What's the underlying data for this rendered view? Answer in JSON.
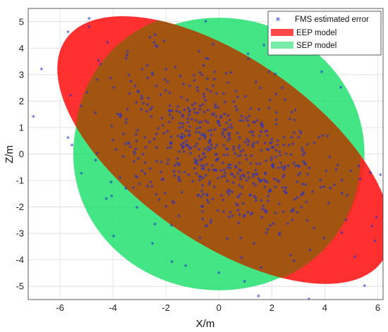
{
  "chart_data": {
    "type": "scatter",
    "xlabel": "X/m",
    "ylabel": "Z/m",
    "xlim": [
      -7.2,
      6.2
    ],
    "ylim": [
      -5.5,
      5.5
    ],
    "xticks": [
      -6,
      -4,
      -2,
      0,
      2,
      4,
      6
    ],
    "yticks": [
      -5,
      -4,
      -3,
      -2,
      -1,
      0,
      1,
      2,
      3,
      4,
      5
    ],
    "grid": true,
    "legend_position": "top-right",
    "legend": [
      {
        "label": "FMS estimated error",
        "marker": "asterisk",
        "color": "#1f2fd0"
      },
      {
        "label": "EEP model",
        "marker": "patch",
        "color": "#ff1a1a"
      },
      {
        "label": "SEP model",
        "marker": "patch",
        "color": "#22e070"
      }
    ],
    "series": [
      {
        "name": "SEP model",
        "shape": "ellipse",
        "color": "#22e070",
        "center": [
          0.0,
          0.0
        ],
        "semi_axis_x": 5.5,
        "semi_axis_z": 5.15,
        "rotation_deg": 0
      },
      {
        "name": "EEP model",
        "shape": "ellipse",
        "color": "#ff1a1a",
        "center": [
          0.2,
          0.15
        ],
        "semi_axis_major": 7.3,
        "semi_axis_minor": 3.3,
        "rotation_deg": -35
      },
      {
        "name": "FMS estimated error",
        "shape": "scatter",
        "color": "#1f2fd0",
        "points": [
          [
            -4.9,
            5.1
          ],
          [
            -5.7,
            4.6
          ],
          [
            -4.9,
            4.8
          ],
          [
            -6.7,
            3.2
          ],
          [
            -7.0,
            1.4
          ],
          [
            -5.7,
            0.6
          ],
          [
            -5.6,
            2.2
          ],
          [
            -4.6,
            2.8
          ],
          [
            -0.5,
            5.0
          ],
          [
            4.6,
            2.5
          ],
          [
            6.1,
            -0.8
          ],
          [
            5.9,
            -3.3
          ],
          [
            5.5,
            -5.0
          ],
          [
            3.4,
            -5.5
          ],
          [
            0.0,
            -4.5
          ],
          [
            4.2,
            -1.3
          ],
          [
            2.2,
            -1.0
          ],
          [
            1.6,
            -4.3
          ],
          [
            -2.0,
            -2.0
          ],
          [
            -5.2,
            1.8
          ],
          [
            -3.5,
            3.6
          ],
          [
            -2.6,
            4.4
          ],
          [
            1.7,
            4.1
          ],
          [
            -4.0,
            0.5
          ],
          [
            4.8,
            -2.5
          ]
        ],
        "dense_cluster": {
          "description_points_count": 650,
          "center": [
            0.0,
            0.2
          ],
          "spread_x": 2.1,
          "spread_z": 1.65,
          "correlation": -0.35
        }
      }
    ]
  }
}
